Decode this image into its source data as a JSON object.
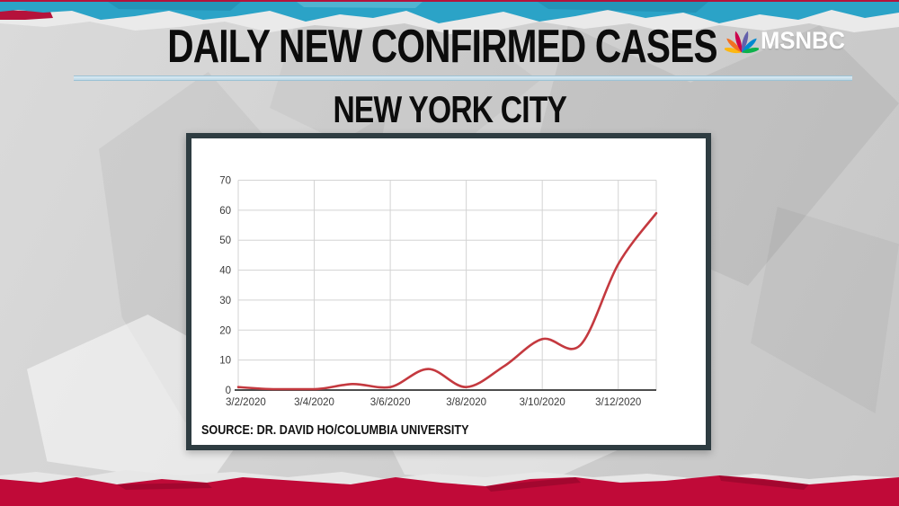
{
  "header": {
    "title": "DAILY NEW CONFIRMED CASES",
    "subtitle": "NEW YORK CITY",
    "brand": "MSNBC"
  },
  "chart_panel": {
    "source_label": "SOURCE: DR. DAVID HO/COLUMBIA UNIVERSITY"
  },
  "chart_data": {
    "type": "line",
    "title": "DAILY NEW CONFIRMED CASES",
    "subtitle": "NEW YORK CITY",
    "x": [
      "3/2/2020",
      "3/3/2020",
      "3/4/2020",
      "3/5/2020",
      "3/6/2020",
      "3/7/2020",
      "3/8/2020",
      "3/9/2020",
      "3/10/2020",
      "3/11/2020",
      "3/12/2020",
      "3/13/2020"
    ],
    "values": [
      1,
      0,
      0,
      2,
      1,
      7,
      1,
      8,
      17,
      15,
      42,
      59
    ],
    "x_tick_indices": [
      0,
      2,
      4,
      6,
      8,
      10
    ],
    "x_tick_labels": [
      "3/2/2020",
      "3/4/2020",
      "3/6/2020",
      "3/8/2020",
      "3/10/2020",
      "3/12/2020"
    ],
    "y_ticks": [
      0,
      10,
      20,
      30,
      40,
      50,
      60,
      70
    ],
    "ylim": [
      0,
      70
    ],
    "grid": true,
    "legend_position": "none",
    "line_color": "#c4393f",
    "grid_color": "#d3d3d3",
    "axis_color": "#4d4d4d",
    "tick_label_color": "#3a3a3a"
  },
  "colors": {
    "top_band_teal": "#2ba3c7",
    "band_red": "#c00a38",
    "divider_blue": "#bcd8e6",
    "panel_frame": "#2e3c41",
    "background_gray": "#cfcfcf"
  },
  "icons": {
    "peacock": "nbc-peacock-icon"
  },
  "peacock_feather_colors": [
    "#fcb711",
    "#f37021",
    "#cc004c",
    "#6460aa",
    "#0089d0",
    "#0db14b"
  ]
}
